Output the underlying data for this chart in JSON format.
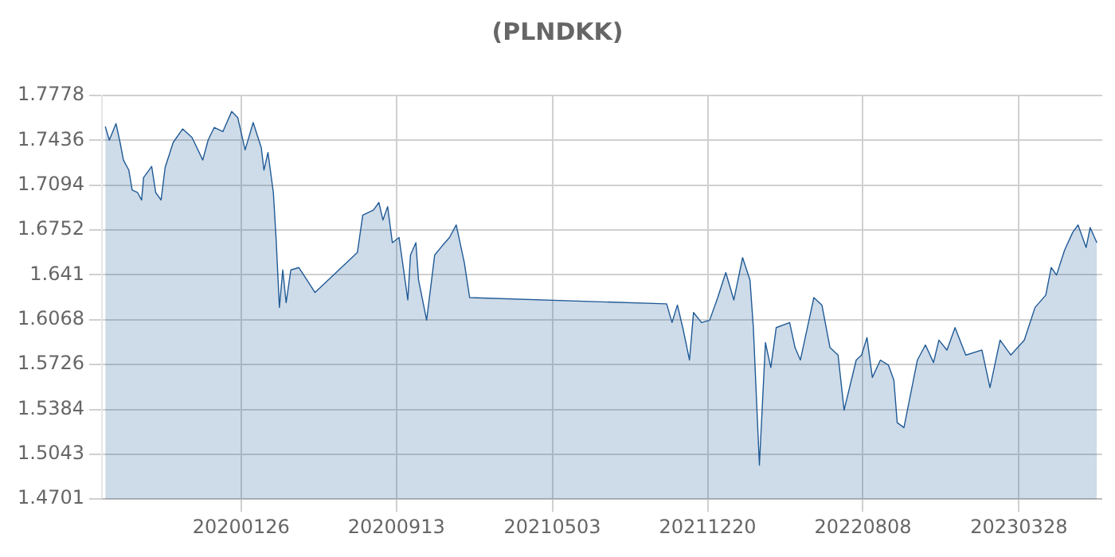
{
  "chart_data": {
    "type": "area",
    "title": "(PLNDKK)",
    "grid": true,
    "legend": false,
    "xlim": [
      "2019-07-03",
      "2023-07-30"
    ],
    "xticks": [
      {
        "value": "2020-01-26",
        "label": "20200126"
      },
      {
        "value": "2020-09-13",
        "label": "20200913"
      },
      {
        "value": "2021-05-03",
        "label": "20210503"
      },
      {
        "value": "2021-12-20",
        "label": "20211220"
      },
      {
        "value": "2022-08-08",
        "label": "20220808"
      },
      {
        "value": "2023-03-28",
        "label": "20230328"
      }
    ],
    "ylim": [
      1.4701,
      1.7778
    ],
    "yticks": [
      1.4701,
      1.5043,
      1.5384,
      1.5726,
      1.6068,
      1.641,
      1.6752,
      1.7094,
      1.7436,
      1.7778
    ],
    "series": [
      {
        "color": "#1f5a96",
        "x": [
          "2019-07-08",
          "2019-07-14",
          "2019-07-24",
          "2019-07-30",
          "2019-08-04",
          "2019-08-12",
          "2019-08-17",
          "2019-08-25",
          "2019-08-31",
          "2019-09-03",
          "2019-09-15",
          "2019-09-21",
          "2019-09-29",
          "2019-10-05",
          "2019-10-17",
          "2019-10-31",
          "2019-11-14",
          "2019-11-30",
          "2019-12-08",
          "2019-12-17",
          "2019-12-30",
          "2020-01-12",
          "2020-01-21",
          "2020-02-01",
          "2020-02-13",
          "2020-02-25",
          "2020-02-29",
          "2020-03-06",
          "2020-03-14",
          "2020-03-18",
          "2020-03-23",
          "2020-03-28",
          "2020-04-02",
          "2020-04-09",
          "2020-04-21",
          "2020-05-03",
          "2020-05-15",
          "2020-07-17",
          "2020-07-25",
          "2020-08-10",
          "2020-08-18",
          "2020-08-24",
          "2020-08-31",
          "2020-09-07",
          "2020-09-17",
          "2020-09-30",
          "2020-10-04",
          "2020-10-12",
          "2020-10-16",
          "2020-10-28",
          "2020-11-09",
          "2020-11-21",
          "2020-12-01",
          "2020-12-11",
          "2020-12-23",
          "2020-12-31",
          "2021-10-20",
          "2021-10-28",
          "2021-11-05",
          "2021-11-13",
          "2021-11-23",
          "2021-11-29",
          "2021-12-11",
          "2021-12-23",
          "2022-01-04",
          "2022-01-16",
          "2022-01-28",
          "2022-02-10",
          "2022-02-21",
          "2022-02-26",
          "2022-03-07",
          "2022-03-16",
          "2022-03-24",
          "2022-04-01",
          "2022-04-21",
          "2022-04-29",
          "2022-05-07",
          "2022-05-27",
          "2022-06-08",
          "2022-06-20",
          "2022-07-02",
          "2022-07-11",
          "2022-07-29",
          "2022-08-06",
          "2022-08-14",
          "2022-08-22",
          "2022-09-03",
          "2022-09-15",
          "2022-09-23",
          "2022-09-28",
          "2022-10-08",
          "2022-10-28",
          "2022-11-09",
          "2022-11-21",
          "2022-11-29",
          "2022-12-11",
          "2022-12-23",
          "2023-01-08",
          "2023-02-01",
          "2023-02-13",
          "2023-02-28",
          "2023-03-16",
          "2023-04-05",
          "2023-04-21",
          "2023-05-07",
          "2023-05-15",
          "2023-05-23",
          "2023-06-04",
          "2023-06-16",
          "2023-06-24",
          "2023-07-06",
          "2023-07-12",
          "2023-07-22"
        ],
        "values": [
          1.7541,
          1.7438,
          1.7564,
          1.742,
          1.7286,
          1.7209,
          1.7057,
          1.7038,
          1.6981,
          1.7152,
          1.7237,
          1.7038,
          1.6981,
          1.7229,
          1.742,
          1.7523,
          1.7458,
          1.7286,
          1.7438,
          1.7534,
          1.7503,
          1.7656,
          1.761,
          1.7363,
          1.7572,
          1.7381,
          1.7209,
          1.7343,
          1.7038,
          1.6695,
          1.6162,
          1.6448,
          1.6199,
          1.6448,
          1.6466,
          1.6371,
          1.6276,
          1.6581,
          1.6866,
          1.6905,
          1.6962,
          1.6828,
          1.6931,
          1.6656,
          1.6695,
          1.6219,
          1.6562,
          1.6656,
          1.6371,
          1.6065,
          1.6562,
          1.6637,
          1.6695,
          1.6791,
          1.6505,
          1.6237,
          1.6189,
          1.6047,
          1.618,
          1.6008,
          1.5761,
          1.6123,
          1.6047,
          1.6065,
          1.6237,
          1.6428,
          1.6219,
          1.6542,
          1.6371,
          1.6008,
          1.496,
          1.5894,
          1.5704,
          1.6008,
          1.6047,
          1.5856,
          1.5761,
          1.6237,
          1.618,
          1.5856,
          1.5799,
          1.5379,
          1.5761,
          1.5799,
          1.5933,
          1.5628,
          1.5761,
          1.5722,
          1.5608,
          1.5284,
          1.5246,
          1.5761,
          1.5876,
          1.5742,
          1.5913,
          1.5837,
          1.6008,
          1.5799,
          1.5837,
          1.5551,
          1.5913,
          1.5799,
          1.5913,
          1.6162,
          1.6256,
          1.6466,
          1.6409,
          1.66,
          1.6734,
          1.6791,
          1.6619,
          1.6771,
          1.6656
        ]
      }
    ]
  }
}
